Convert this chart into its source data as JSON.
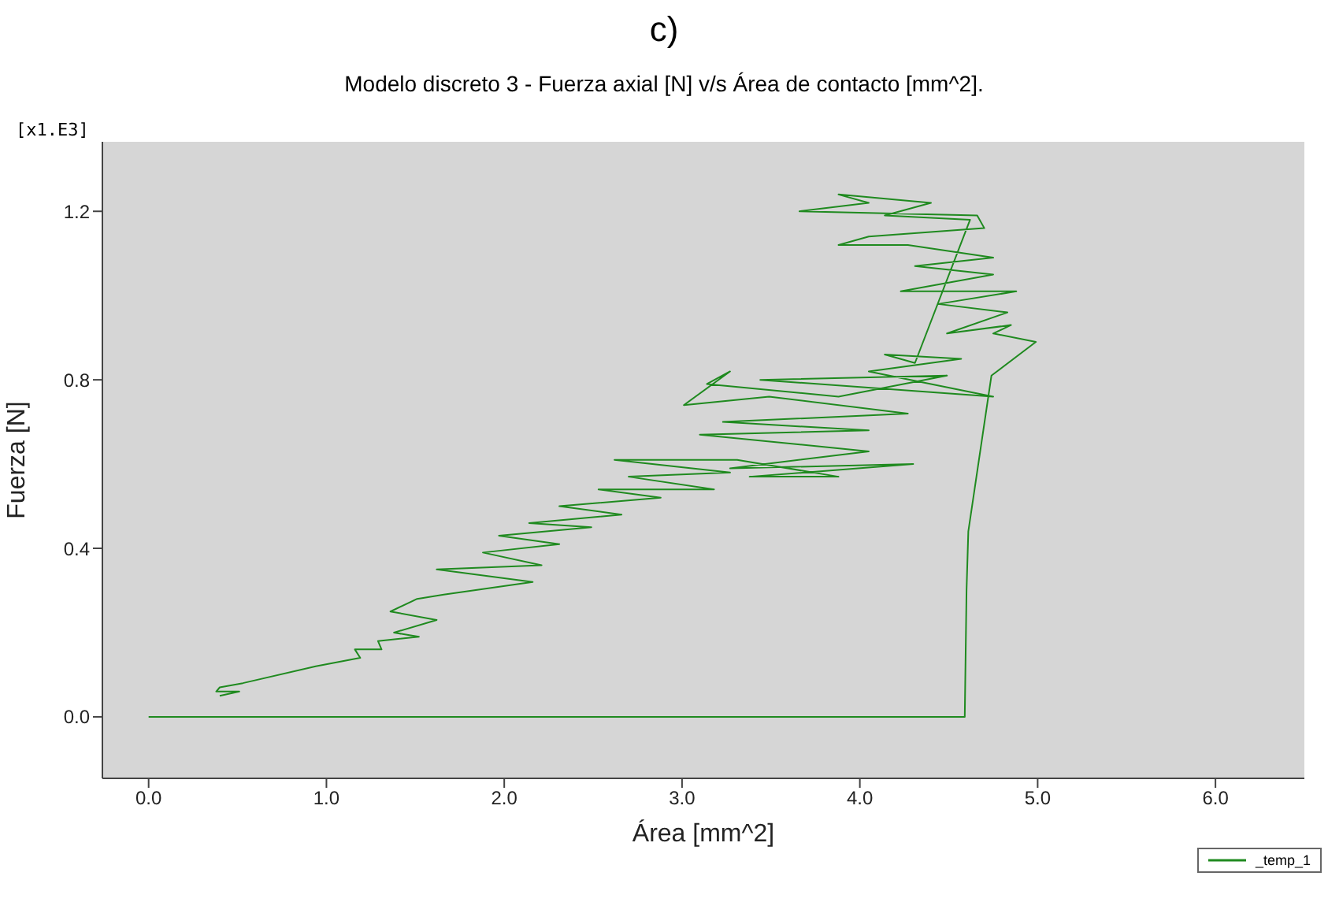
{
  "chart_data": {
    "type": "line",
    "title": "c)",
    "subtitle": "Modelo discreto 3 - Fuerza  axial [N] v/s Área de contacto [mm^2].",
    "xlabel": "Área [mm^2]",
    "ylabel": "Fuerza [N]",
    "annotations": [
      "[x1.E3]"
    ],
    "x": [
      0,
      4.59,
      4.6,
      4.61,
      4.74,
      4.99,
      4.75,
      4.85,
      4.49,
      4.83,
      4.44,
      4.88,
      4.23,
      4.75,
      4.31,
      4.75,
      4.27,
      3.88,
      4.05,
      4.7,
      4.66,
      3.66,
      4.05,
      3.88,
      4.4,
      4.14,
      4.62,
      4.31,
      4.14,
      4.57,
      4.05,
      4.75,
      3.44,
      4.49,
      3.88,
      3.14,
      3.27,
      3.01,
      3.49,
      4.27,
      3.23,
      4.05,
      3.1,
      4.05,
      3.27,
      4.3,
      3.38,
      3.88,
      3.31,
      2.62,
      3.27,
      2.7,
      3.18,
      2.53,
      2.88,
      2.31,
      2.66,
      2.14,
      2.49,
      1.97,
      2.31,
      1.88,
      2.21,
      1.62,
      2.16,
      1.66,
      1.51,
      1.36,
      1.62,
      1.38,
      1.52,
      1.29,
      1.31,
      1.16,
      1.19,
      0.94,
      0.53,
      0.4,
      0.38,
      0.51,
      0.4
    ],
    "series": [
      {
        "name": "_temp_1",
        "color": "#1f8a1f",
        "values": [
          0,
          0,
          0.3,
          0.44,
          0.81,
          0.89,
          0.91,
          0.93,
          0.91,
          0.96,
          0.98,
          1.01,
          1.01,
          1.05,
          1.07,
          1.09,
          1.12,
          1.12,
          1.14,
          1.16,
          1.19,
          1.2,
          1.22,
          1.24,
          1.22,
          1.19,
          1.18,
          0.84,
          0.86,
          0.85,
          0.82,
          0.76,
          0.8,
          0.81,
          0.76,
          0.79,
          0.82,
          0.74,
          0.76,
          0.72,
          0.7,
          0.68,
          0.67,
          0.63,
          0.59,
          0.6,
          0.57,
          0.57,
          0.61,
          0.61,
          0.58,
          0.57,
          0.54,
          0.54,
          0.52,
          0.5,
          0.48,
          0.46,
          0.45,
          0.43,
          0.41,
          0.39,
          0.36,
          0.35,
          0.32,
          0.29,
          0.28,
          0.25,
          0.23,
          0.2,
          0.19,
          0.18,
          0.16,
          0.16,
          0.14,
          0.12,
          0.08,
          0.07,
          0.06,
          0.06,
          0.05
        ]
      }
    ],
    "xlim": [
      -0.26,
      6.5
    ],
    "xticks": [
      {
        "value": 0,
        "label": "0.0"
      },
      {
        "value": 1,
        "label": "1.0"
      },
      {
        "value": 2,
        "label": "2.0"
      },
      {
        "value": 3,
        "label": "3.0"
      },
      {
        "value": 4,
        "label": "4.0"
      },
      {
        "value": 5,
        "label": "5.0"
      },
      {
        "value": 6,
        "label": "6.0"
      }
    ],
    "ylim": [
      -0.146,
      1.365
    ],
    "yticks": [
      {
        "value": 0,
        "label": "0.0"
      },
      {
        "value": 0.4,
        "label": "0.4"
      },
      {
        "value": 0.8,
        "label": "0.8"
      },
      {
        "value": 1.2,
        "label": "1.2"
      }
    ],
    "grid": false,
    "legend": "bottom right",
    "marker": "none",
    "line_style": "solid"
  }
}
